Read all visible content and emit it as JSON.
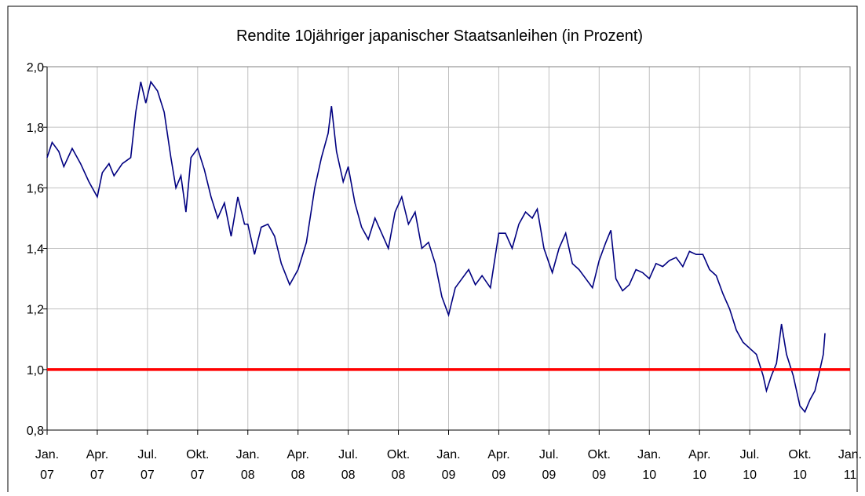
{
  "chart_data": {
    "type": "line",
    "title": "Rendite 10jähriger japanischer Staatsanleihen (in Prozent)",
    "x": [
      0,
      0.3,
      0.7,
      1,
      1.5,
      2,
      2.5,
      3,
      3.3,
      3.7,
      4,
      4.5,
      5,
      5.3,
      5.6,
      5.9,
      6.2,
      6.6,
      7,
      7.4,
      7.7,
      8,
      8.3,
      8.6,
      9,
      9.4,
      9.8,
      10.2,
      10.6,
      11,
      11.4,
      11.8,
      12,
      12.4,
      12.8,
      13.2,
      13.6,
      14,
      14.5,
      15,
      15.5,
      16,
      16.4,
      16.8,
      17,
      17.3,
      17.7,
      18,
      18.4,
      18.8,
      19.2,
      19.6,
      20,
      20.4,
      20.8,
      21.2,
      21.6,
      22,
      22.4,
      22.8,
      23.2,
      23.6,
      24,
      24.4,
      24.8,
      25.2,
      25.6,
      26,
      26.5,
      27,
      27.4,
      27.8,
      28.2,
      28.6,
      29,
      29.3,
      29.7,
      30.2,
      30.6,
      31,
      31.4,
      31.8,
      32.2,
      32.6,
      33,
      33.4,
      33.7,
      34,
      34.4,
      34.8,
      35.2,
      35.6,
      36,
      36.4,
      36.8,
      37.2,
      37.6,
      38,
      38.4,
      38.8,
      39.2,
      39.6,
      40,
      40.4,
      40.8,
      41.2,
      41.6,
      42,
      42.4,
      42.8,
      43,
      43.3,
      43.6,
      43.9,
      44.2,
      44.6,
      45,
      45.3,
      45.6,
      45.9,
      46.2,
      46.4,
      46.5
    ],
    "series": [
      {
        "name": "Rendite",
        "color": "#000080",
        "values": [
          1.7,
          1.75,
          1.72,
          1.67,
          1.73,
          1.68,
          1.62,
          1.57,
          1.65,
          1.68,
          1.64,
          1.68,
          1.7,
          1.85,
          1.95,
          1.88,
          1.95,
          1.92,
          1.85,
          1.7,
          1.6,
          1.64,
          1.52,
          1.7,
          1.73,
          1.66,
          1.57,
          1.5,
          1.55,
          1.44,
          1.57,
          1.48,
          1.48,
          1.38,
          1.47,
          1.48,
          1.44,
          1.35,
          1.28,
          1.33,
          1.42,
          1.6,
          1.7,
          1.78,
          1.87,
          1.72,
          1.62,
          1.67,
          1.55,
          1.47,
          1.43,
          1.5,
          1.45,
          1.4,
          1.52,
          1.57,
          1.48,
          1.52,
          1.4,
          1.42,
          1.35,
          1.24,
          1.18,
          1.27,
          1.3,
          1.33,
          1.28,
          1.31,
          1.27,
          1.45,
          1.45,
          1.4,
          1.48,
          1.52,
          1.5,
          1.53,
          1.4,
          1.32,
          1.4,
          1.45,
          1.35,
          1.33,
          1.3,
          1.27,
          1.36,
          1.42,
          1.46,
          1.3,
          1.26,
          1.28,
          1.33,
          1.32,
          1.3,
          1.35,
          1.34,
          1.36,
          1.37,
          1.34,
          1.39,
          1.38,
          1.38,
          1.33,
          1.31,
          1.25,
          1.2,
          1.13,
          1.09,
          1.07,
          1.05,
          0.98,
          0.93,
          0.98,
          1.02,
          1.15,
          1.05,
          0.98,
          0.88,
          0.86,
          0.9,
          0.93,
          1.0,
          1.05,
          1.12
        ]
      }
    ],
    "xlim": [
      0,
      48
    ],
    "xticks": [
      {
        "value": 0,
        "label": "Jan. 07"
      },
      {
        "value": 3,
        "label": "Apr. 07"
      },
      {
        "value": 6,
        "label": "Jul. 07"
      },
      {
        "value": 9,
        "label": "Okt. 07"
      },
      {
        "value": 12,
        "label": "Jan. 08"
      },
      {
        "value": 15,
        "label": "Apr. 08"
      },
      {
        "value": 18,
        "label": "Jul. 08"
      },
      {
        "value": 21,
        "label": "Okt. 08"
      },
      {
        "value": 24,
        "label": "Jan. 09"
      },
      {
        "value": 27,
        "label": "Apr. 09"
      },
      {
        "value": 30,
        "label": "Jul. 09"
      },
      {
        "value": 33,
        "label": "Okt. 09"
      },
      {
        "value": 36,
        "label": "Jan. 10"
      },
      {
        "value": 39,
        "label": "Apr. 10"
      },
      {
        "value": 42,
        "label": "Jul. 10"
      },
      {
        "value": 45,
        "label": "Okt. 10"
      },
      {
        "value": 48,
        "label": "Jan. 11"
      }
    ],
    "ylim": [
      0.8,
      2.0
    ],
    "yticks": [
      {
        "value": 0.8,
        "label": "0,8"
      },
      {
        "value": 1.0,
        "label": "1,0"
      },
      {
        "value": 1.2,
        "label": "1,2"
      },
      {
        "value": 1.4,
        "label": "1,4"
      },
      {
        "value": 1.6,
        "label": "1,6"
      },
      {
        "value": 1.8,
        "label": "1,8"
      },
      {
        "value": 2.0,
        "label": "2,0"
      }
    ],
    "grid": true,
    "reference_line": {
      "value": 1.0,
      "color": "#ff0000"
    }
  }
}
